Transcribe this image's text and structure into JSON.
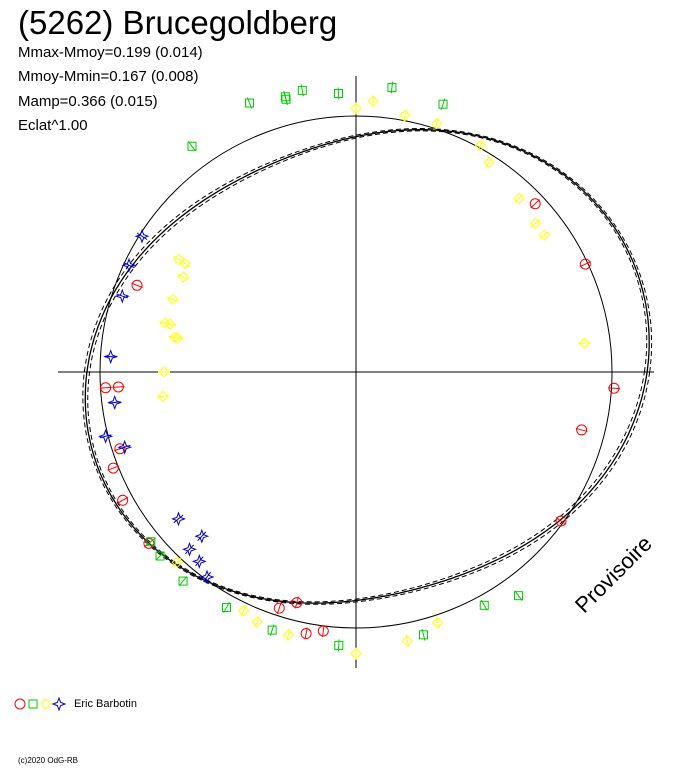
{
  "header": {
    "title": "(5262) Brucegoldberg",
    "stat_max": "Mmax-Mmoy=0.199 (0.014)",
    "stat_min": "Mmoy-Mmin=0.167 (0.008)",
    "stat_amp": "Mamp=0.366 (0.015)",
    "stat_eclat": "Eclat^1.00"
  },
  "watermark": "Provisoire",
  "legend": {
    "label": "Eric Barbotin"
  },
  "copyright": "(c)2020 OdG-RB",
  "colors": {
    "red": "#ff0000",
    "green": "#00cc00",
    "yellow": "#ffff00",
    "blue": "#0000cc",
    "axes": "#000000"
  },
  "chart_data": {
    "type": "scatter",
    "coordinate_system": "polar lightcurve (phase vs magnitude)",
    "reference_circle": true,
    "fitted_curves": 3,
    "series": [
      {
        "marker": "circle",
        "color": "#ff0000",
        "points": [
          [
            0.18,
            0.81
          ],
          [
            0.55,
            0.79
          ],
          [
            0.13,
            0.78
          ],
          [
            0.29,
            0.73
          ],
          [
            0.54,
            0.75
          ],
          [
            0.81,
            0.74
          ],
          [
            0.74,
            0.75
          ],
          [
            0.74,
            0.8
          ],
          [
            0.7,
            0.79
          ],
          [
            0.69,
            0.84
          ],
          [
            0.67,
            0.86
          ],
          [
            0.64,
            0.87
          ],
          [
            0.52,
            0.84
          ],
          [
            0.53,
            0.86
          ],
          [
            0.26,
            0.83
          ],
          [
            0.35,
            0.81
          ]
        ]
      },
      {
        "marker": "square",
        "color": "#00cc00",
        "points": [
          [
            0.64,
            0.86
          ],
          [
            0.63,
            0.87
          ],
          [
            0.61,
            0.88
          ],
          [
            0.58,
            0.87
          ],
          [
            0.55,
            0.88
          ],
          [
            0.51,
            0.89
          ],
          [
            0.46,
            0.88
          ],
          [
            0.42,
            0.86
          ],
          [
            0.4,
            0.9
          ],
          [
            0.02,
            0.94
          ],
          [
            0.05,
            0.92
          ],
          [
            0.96,
            0.92
          ],
          [
            0.9,
            0.91
          ],
          [
            0.96,
            0.93
          ],
          [
            0.99,
            0.91
          ],
          [
            0.94,
            0.95
          ],
          [
            0.97,
            0.94
          ]
        ]
      },
      {
        "marker": "diamond",
        "color": "#ffff00",
        "points": [
          [
            0.84,
            0.64
          ],
          [
            0.84,
            0.61
          ],
          [
            0.83,
            0.59
          ],
          [
            0.81,
            0.59
          ],
          [
            0.79,
            0.59
          ],
          [
            0.79,
            0.57
          ],
          [
            0.75,
            0.57
          ],
          [
            0.73,
            0.58
          ],
          [
            0.78,
            0.53
          ],
          [
            0.78,
            0.54
          ],
          [
            0.23,
            0.72
          ],
          [
            0.15,
            0.73
          ],
          [
            0.14,
            0.73
          ],
          [
            0.12,
            0.75
          ],
          [
            0.09,
            0.79
          ],
          [
            0.08,
            0.83
          ],
          [
            0.05,
            0.84
          ],
          [
            0.03,
            0.84
          ],
          [
            0.0,
            0.85
          ],
          [
            0.01,
            0.88
          ],
          [
            0.62,
            0.84
          ],
          [
            0.57,
            0.85
          ],
          [
            0.56,
            0.87
          ],
          [
            0.54,
            0.88
          ],
          [
            0.5,
            0.92
          ],
          [
            0.47,
            0.89
          ],
          [
            0.45,
            0.85
          ]
        ]
      },
      {
        "marker": "star",
        "color": "#0000cc",
        "points": [
          [
            0.6,
            0.81
          ],
          [
            0.61,
            0.78
          ],
          [
            0.62,
            0.77
          ],
          [
            0.64,
            0.72
          ],
          [
            0.62,
            0.7
          ],
          [
            0.71,
            0.83
          ],
          [
            0.7,
            0.77
          ],
          [
            0.73,
            0.77
          ],
          [
            0.76,
            0.78
          ],
          [
            0.8,
            0.78
          ],
          [
            0.82,
            0.8
          ],
          [
            0.84,
            0.81
          ]
        ]
      }
    ]
  }
}
